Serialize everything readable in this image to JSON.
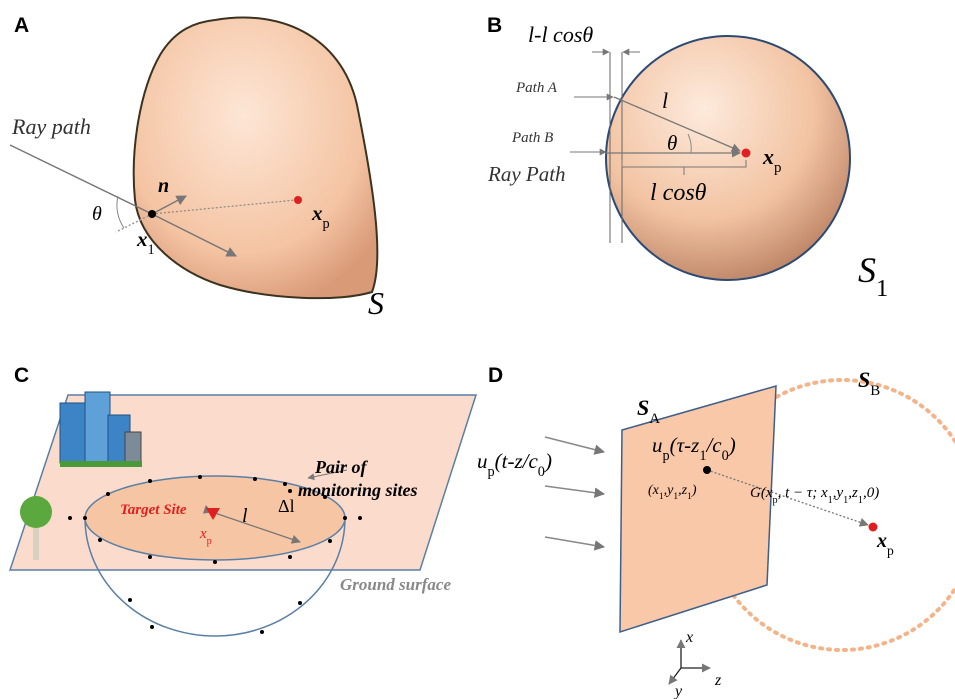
{
  "panel_a": {
    "letter": "A",
    "ray_path": "Ray path",
    "normal": "n",
    "angle": "θ",
    "point": [
      "x",
      {
        "sub": "1"
      }
    ],
    "target": [
      "x",
      {
        "sub": "p"
      }
    ],
    "surface": "S"
  },
  "panel_b": {
    "letter": "B",
    "difference": "l-l cosθ",
    "path_a": "Path A",
    "path_b": "Path B",
    "ray_path": "Ray Path",
    "length": "l",
    "angle": "θ",
    "target": [
      "x",
      {
        "sub": "p"
      }
    ],
    "projection": "l cosθ",
    "surface": [
      "S",
      {
        "sub": "1"
      }
    ]
  },
  "panel_c": {
    "letter": "C",
    "pair_line1": "Pair of",
    "pair_line2": "monitoring sites",
    "target_site": "Target Site",
    "target": [
      "x",
      {
        "sub": "p"
      }
    ],
    "length": "l",
    "delta": "Δl",
    "ground": "Ground surface"
  },
  "panel_d": {
    "letter": "D",
    "plane": [
      "S",
      {
        "sub": "A"
      }
    ],
    "sphere": [
      "S",
      {
        "sub": "B"
      }
    ],
    "incident": [
      "u",
      {
        "sub": "p"
      },
      "(t-z/c",
      {
        "sub": "0"
      },
      ")"
    ],
    "source": [
      "u",
      {
        "sub": "p"
      },
      "(τ-z",
      {
        "sub": "1"
      },
      "/c",
      {
        "sub": "0"
      },
      ")"
    ],
    "coords": [
      "(x",
      {
        "sub": "1"
      },
      ",y",
      {
        "sub": "1"
      },
      ",z",
      {
        "sub": "1"
      },
      ")"
    ],
    "green": [
      "G(x",
      {
        "sub": "p"
      },
      ", t − τ; x",
      {
        "sub": "1"
      },
      ",y",
      {
        "sub": "1"
      },
      ",z",
      {
        "sub": "1"
      },
      ",0)"
    ],
    "target": [
      "x",
      {
        "sub": "p"
      }
    ],
    "axis_x": "x",
    "axis_y": "y",
    "axis_z": "z"
  }
}
